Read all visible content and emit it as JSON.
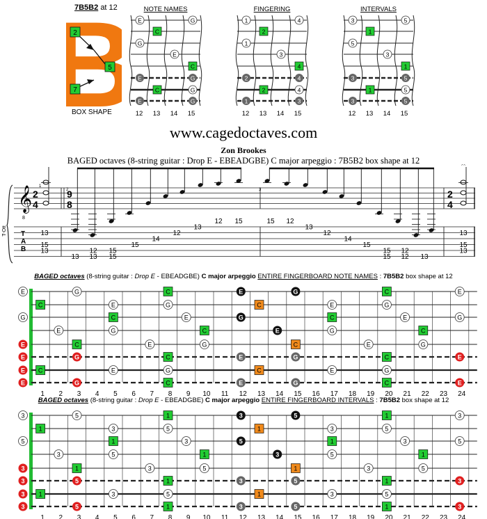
{
  "box": {
    "title_name": "7B5B2",
    "title_suffix": "at 12",
    "caption": "BOX SHAPE",
    "shape_letter": "B",
    "nodes": [
      "2",
      "5",
      "7"
    ]
  },
  "mini_diagrams": [
    {
      "title": "NOTE NAMES",
      "mode": "names"
    },
    {
      "title": "FINGERING",
      "mode": "fingering"
    },
    {
      "title": "INTERVALS",
      "mode": "intervals"
    }
  ],
  "mini_frets": [
    "12",
    "13",
    "14",
    "15"
  ],
  "site": "www.cagedoctaves.com",
  "author": "Zon Brookes",
  "subtitle": "BAGED octaves (8-string guitar : Drop E - EBEADGBE) C major arpeggio : 7B5B2 box shape at 12",
  "staff": {
    "time_top": "2",
    "time_bottom": "4",
    "mid_time_top": "9",
    "mid_time_bottom": "8",
    "end_time_top": "2",
    "end_time_bottom": "4",
    "clef_marking": "8",
    "side_label": "T-Ott",
    "measure_numbers": [
      "1",
      "2",
      "3"
    ],
    "tab_letters": [
      "T",
      "A",
      "B"
    ]
  },
  "tab": {
    "chord1": [
      "13",
      "15",
      "13"
    ],
    "m2": [
      [
        "13",
        "12"
      ],
      [
        "12",
        "15"
      ],
      [
        "15"
      ],
      [
        "14"
      ],
      [
        "12"
      ],
      [
        "13"
      ],
      [
        "12"
      ],
      [
        "15"
      ]
    ],
    "m3": [
      [
        "15"
      ],
      [
        "12"
      ],
      [
        "13"
      ],
      [
        "14"
      ],
      [
        "15"
      ],
      [
        "12",
        "15"
      ],
      [
        "12",
        "15"
      ],
      [
        "13"
      ]
    ],
    "chord4": [
      "13",
      "15",
      "13"
    ]
  },
  "notes_board": {
    "title_italic": "BAGED octaves",
    "title_mid": "(8-string guitar :",
    "title_drop": "Drop E",
    "title_tuning": "- EBEADGBE)",
    "title_bold": "C major arpeggio",
    "title_underline": "ENTIRE FINGERBOARD NOTE NAMES",
    "title_sep": ":",
    "title_box": "7B5B2",
    "title_end": "box shape at 12"
  },
  "intervals_board": {
    "title_italic": "BAGED octaves",
    "title_mid": "(8-string guitar :",
    "title_drop": "Drop E",
    "title_tuning": "- EBEADGBE)",
    "title_bold": "C major arpeggio",
    "title_underline": "ENTIRE FINGERBOARD INTERVALS",
    "title_sep": ":",
    "title_box": "7B5B2",
    "title_end": "box shape at 12"
  },
  "fret_numbers": [
    "1",
    "2",
    "3",
    "4",
    "5",
    "6",
    "7",
    "8",
    "9",
    "10",
    "11",
    "12",
    "13",
    "14",
    "15",
    "16",
    "17",
    "18",
    "19",
    "20",
    "21",
    "22",
    "23",
    "24"
  ],
  "colors": {
    "green": "#22cc33",
    "orange": "#f08a1c",
    "red": "#e02020",
    "gray": "#666666",
    "black": "#111111"
  }
}
